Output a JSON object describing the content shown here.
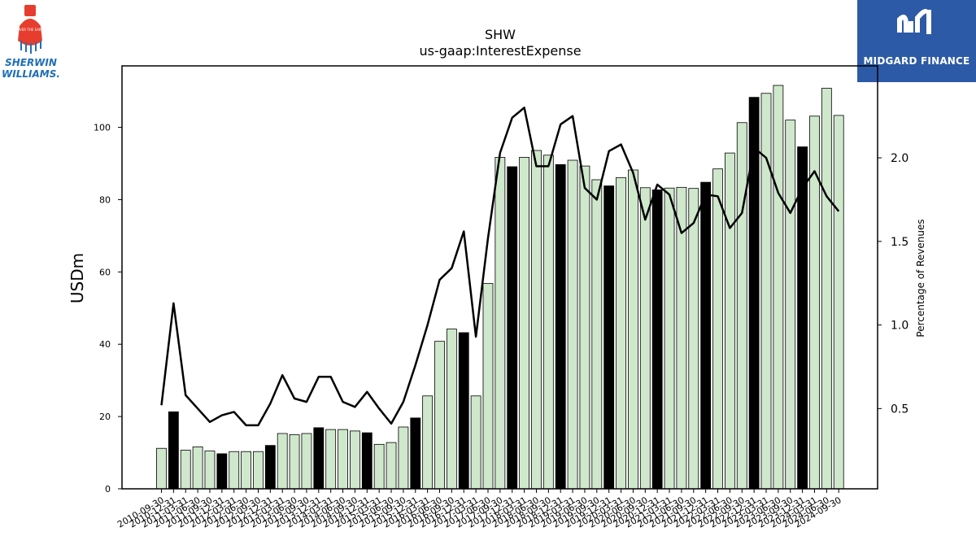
{
  "logos": {
    "left_text_1": "SHERWIN",
    "left_text_2": "WILLIAMS.",
    "left_badge": "COVER THE EARTH",
    "right_text": "MIDGARD FINANCE"
  },
  "colors": {
    "bar_light": "#cfe8cc",
    "bar_dark": "#000000",
    "line": "#000000",
    "brand_blue": "#2d5aa6"
  },
  "chart_data": {
    "type": "bar",
    "title": "SHW",
    "subtitle": "us-gaap:InterestExpense",
    "ylabel": "USDm",
    "y2label": "Percentage of Revenues",
    "ylim": [
      0,
      117
    ],
    "y2lim": [
      0.02,
      2.55
    ],
    "yticks": [
      0,
      20,
      40,
      60,
      80,
      100
    ],
    "y2ticks": [
      0.5,
      1.0,
      1.5,
      2.0
    ],
    "y2ticklabels": [
      "0.5",
      "1.0",
      "1.5",
      "2.0"
    ],
    "categories": [
      "2010-09-30",
      "2010-12-31",
      "2011-03-31",
      "2011-06-30",
      "2011-09-30",
      "2011-12-31",
      "2012-03-31",
      "2012-06-30",
      "2012-09-30",
      "2012-12-31",
      "2013-03-31",
      "2013-06-30",
      "2013-09-30",
      "2013-12-31",
      "2014-03-31",
      "2014-06-30",
      "2014-09-30",
      "2014-12-31",
      "2015-03-31",
      "2015-06-30",
      "2015-09-30",
      "2015-12-31",
      "2016-03-31",
      "2016-06-30",
      "2016-09-30",
      "2016-12-31",
      "2017-03-31",
      "2017-06-30",
      "2017-09-30",
      "2017-12-31",
      "2018-03-31",
      "2018-06-30",
      "2018-09-30",
      "2018-12-31",
      "2019-03-31",
      "2019-06-30",
      "2019-09-30",
      "2019-12-31",
      "2020-03-31",
      "2020-06-30",
      "2020-09-30",
      "2020-12-31",
      "2021-03-31",
      "2021-06-30",
      "2021-09-30",
      "2021-12-31",
      "2022-03-31",
      "2022-06-30",
      "2022-09-30",
      "2022-12-31",
      "2023-03-31",
      "2023-06-30",
      "2023-09-30",
      "2023-12-31",
      "2024-03-31",
      "2024-06-30",
      "2024-09-30"
    ],
    "xticklabels": [
      "2010-09-30",
      "2010-12-31",
      "2011-03-31",
      "2011-06-30",
      "2011-09-30",
      "2011-12-31",
      "2012-03-31",
      "2012-06-30",
      "2012-09-30",
      "2012-12-31",
      "2013-03-31",
      "2013-06-30",
      "2013-09-30",
      "2013-12-31",
      "2014-03-31",
      "2014-06-30",
      "2014-09-30",
      "2014-12-31",
      "2015-03-31",
      "2015-06-30",
      "2015-09-30",
      "2015-12-31",
      "2016-03-31",
      "2016-06-30",
      "2016-09-30",
      "2016-12-31",
      "2017-03-31",
      "2017-06-30",
      "2017-09-30",
      "2017-12-31",
      "2018-03-31",
      "2018-06-30",
      "2018-09-30",
      "2018-12-31",
      "2019-03-31",
      "2019-06-30",
      "2019-09-30",
      "2019-12-31",
      "2020-03-31",
      "2020-06-30",
      "2020-09-30",
      "2020-12-31",
      "2021-03-31",
      "2021-06-30",
      "2021-09-30",
      "2021-12-31",
      "2022-03-31",
      "2022-06-30",
      "2022-09-30",
      "2022-12-31",
      "2023-03-31",
      "2023-06-30",
      "2023-09-30",
      "2023-12-31",
      "2024-03-31",
      "2024-06-30",
      "2024-09-30"
    ],
    "series": [
      {
        "values": [
          11.2,
          21.3,
          10.7,
          11.6,
          10.5,
          9.7,
          10.3,
          10.3,
          10.3,
          12.0,
          15.3,
          15.0,
          15.3,
          16.9,
          16.4,
          16.4,
          16.0,
          15.5,
          12.3,
          12.8,
          17.1,
          19.6,
          25.7,
          40.8,
          44.2,
          43.2,
          25.7,
          56.8,
          91.7,
          89.1,
          91.7,
          93.6,
          92.3,
          89.7,
          90.9,
          89.3,
          85.5,
          83.8,
          86.1,
          88.2,
          83.3,
          82.7,
          83.2,
          83.4,
          83.1,
          84.8,
          88.5,
          92.9,
          101.3,
          108.3,
          109.4,
          111.6,
          102.0,
          94.6,
          103.1,
          110.8,
          103.3
        ],
        "highlight": [
          false,
          true,
          false,
          false,
          false,
          true,
          false,
          false,
          false,
          true,
          false,
          false,
          false,
          true,
          false,
          false,
          false,
          true,
          false,
          false,
          false,
          true,
          false,
          false,
          false,
          true,
          false,
          false,
          false,
          true,
          false,
          false,
          false,
          true,
          false,
          false,
          false,
          true,
          false,
          false,
          false,
          true,
          false,
          false,
          false,
          true,
          false,
          false,
          false,
          true,
          false,
          false,
          false,
          true,
          false,
          false,
          false
        ]
      },
      {
        "type": "line",
        "values": [
          0.52,
          1.13,
          0.58,
          0.5,
          0.42,
          0.46,
          0.48,
          0.4,
          0.4,
          0.53,
          0.7,
          0.56,
          0.54,
          0.69,
          0.69,
          0.54,
          0.51,
          0.6,
          0.5,
          0.41,
          0.54,
          0.76,
          1.0,
          1.27,
          1.34,
          1.56,
          0.93,
          1.52,
          2.03,
          2.24,
          2.3,
          1.95,
          1.95,
          2.2,
          2.25,
          1.82,
          1.75,
          2.04,
          2.08,
          1.91,
          1.63,
          1.84,
          1.78,
          1.55,
          1.61,
          1.78,
          1.77,
          1.58,
          1.67,
          2.06,
          2.0,
          1.79,
          1.67,
          1.82,
          1.92,
          1.77,
          1.68
        ]
      }
    ]
  }
}
